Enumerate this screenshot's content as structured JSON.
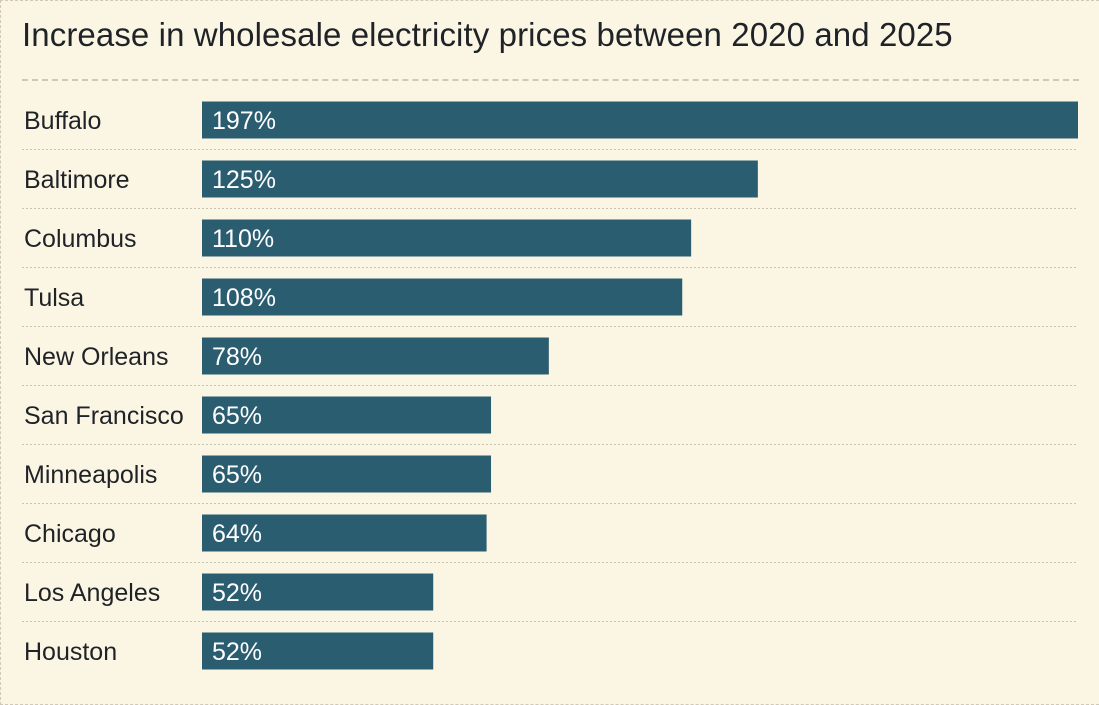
{
  "chart_data": {
    "type": "bar",
    "orientation": "horizontal",
    "title": "Increase in wholesale electricity prices between 2020 and 2025",
    "xlabel": "",
    "ylabel": "",
    "unit": "%",
    "categories": [
      "Buffalo",
      "Baltimore",
      "Columbus",
      "Tulsa",
      "New Orleans",
      "San Francisco",
      "Minneapolis",
      "Chicago",
      "Los Angeles",
      "Houston"
    ],
    "values": [
      197,
      125,
      110,
      108,
      78,
      65,
      65,
      64,
      52,
      52
    ],
    "data_labels": [
      "197%",
      "125%",
      "110%",
      "108%",
      "78%",
      "65%",
      "65%",
      "64%",
      "52%",
      "52%"
    ],
    "xlim": [
      0,
      197
    ],
    "grid": false,
    "legend": "none",
    "bar_color": "#2b5d70"
  }
}
